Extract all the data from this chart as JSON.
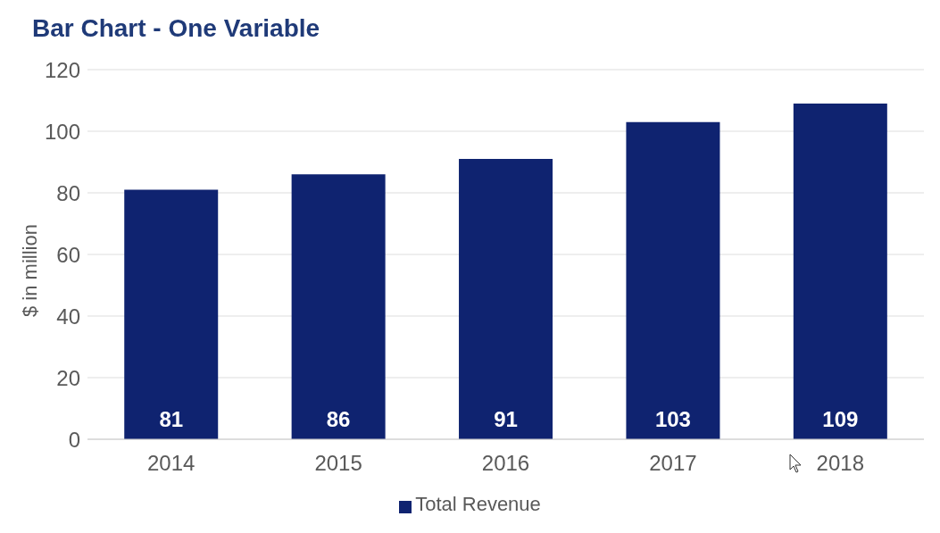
{
  "chart_data": {
    "type": "bar",
    "title": "Bar Chart - One Variable",
    "ylabel": "$ in million",
    "categories": [
      "2014",
      "2015",
      "2016",
      "2017",
      "2018"
    ],
    "series": [
      {
        "name": "Total Revenue",
        "color": "#0f2370",
        "values": [
          81,
          86,
          91,
          103,
          109
        ]
      }
    ],
    "ylim": [
      0,
      120
    ],
    "yticks": [
      0,
      20,
      40,
      60,
      80,
      100,
      120
    ],
    "grid": "y",
    "legend": "bottom",
    "data_labels": true
  }
}
